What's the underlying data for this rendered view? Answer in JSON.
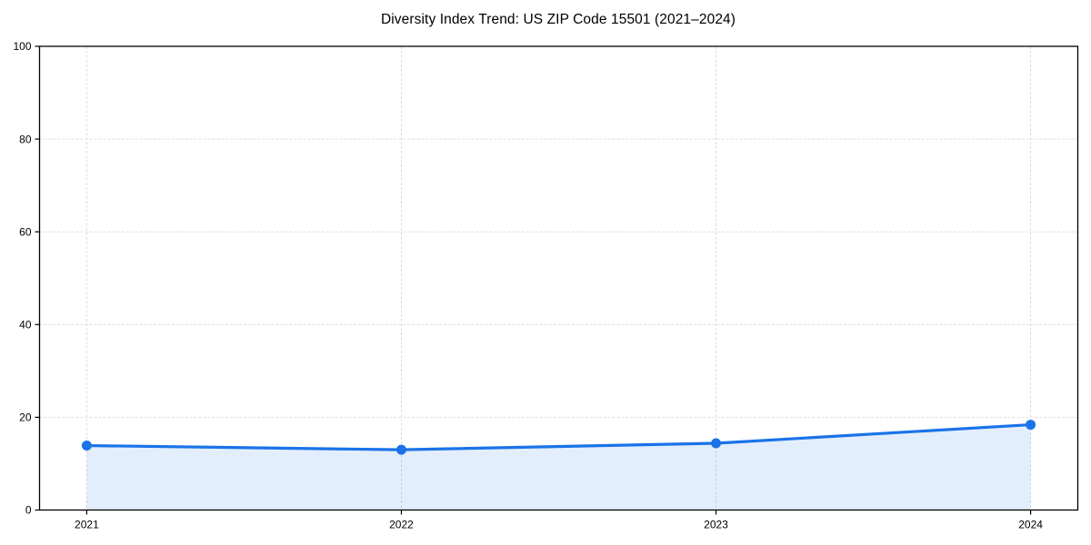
{
  "chart_data": {
    "type": "line",
    "title": "Diversity Index Trend: US ZIP Code 15501 (2021–2024)",
    "series_name": "Diversity Index",
    "categories": [
      "2021",
      "2022",
      "2023",
      "2024"
    ],
    "values": [
      13.9,
      13.0,
      14.4,
      18.4
    ],
    "xlabel": "",
    "ylabel": "",
    "ylim": [
      0,
      100
    ],
    "yticks": [
      0,
      20,
      40,
      60,
      80,
      100
    ],
    "grid": true,
    "grid_style": "dashed",
    "legend": false,
    "marker": "circle",
    "area_fill": true,
    "colors": {
      "line": "#1a73e8",
      "marker": "#1a73e8",
      "area_fill": "rgba(26,115,232,0.12)",
      "grid": "#dedede",
      "axis": "#000000",
      "tick_text": "#000000",
      "background": "#ffffff"
    }
  }
}
